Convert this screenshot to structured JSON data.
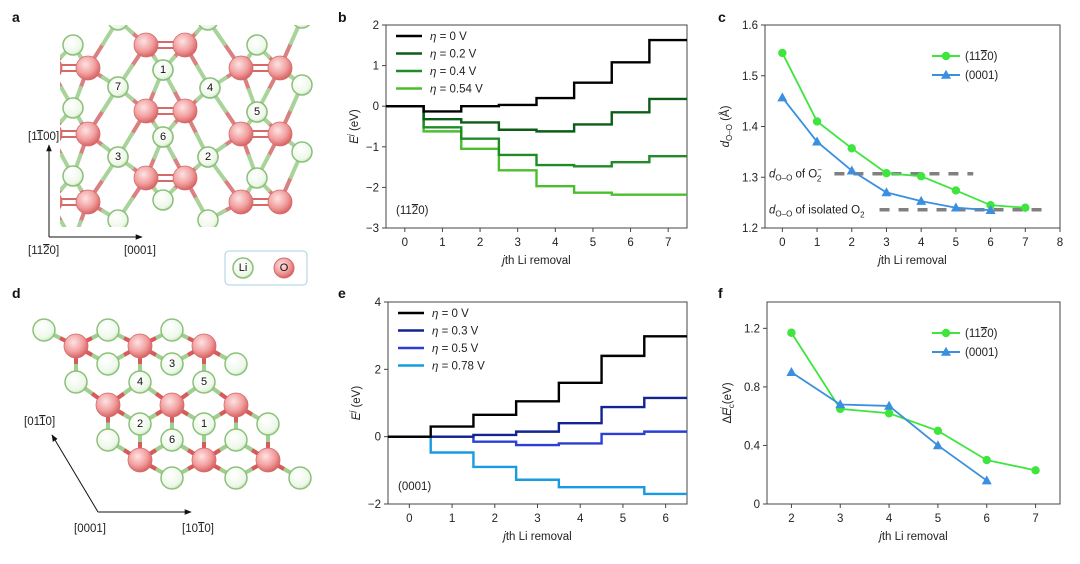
{
  "panel_labels": [
    "a",
    "b",
    "c",
    "d",
    "e",
    "f"
  ],
  "structure_a": {
    "axis_up": "[1̅100]",
    "axis_up_text": "[1100]",
    "axis_origin": "[1120]",
    "axis_right": "[0001]",
    "site_numbers": [
      "1",
      "2",
      "3",
      "4",
      "5",
      "6",
      "7"
    ],
    "legend": {
      "li": "Li",
      "o": "O"
    },
    "colors": {
      "li_fill": "#e6f5df",
      "li_stroke": "#8cc07a",
      "o_fill": "#f2a3a3",
      "o_stroke": "#d46a6a"
    }
  },
  "structure_d": {
    "axis_up": "[0110]",
    "axis_origin": "[0001]",
    "axis_right": "[1010]",
    "site_numbers": [
      "1",
      "2",
      "3",
      "4",
      "5",
      "6"
    ]
  },
  "chart_data": [
    {
      "panel": "b",
      "type": "line",
      "style": "step",
      "title": "",
      "annotation": "(1120)",
      "xlabel": "jth Li removal",
      "ylabel": "E^j (eV)",
      "xlim": [
        -0.5,
        7.5
      ],
      "ylim": [
        -3,
        2
      ],
      "xticks": [
        "0",
        "1",
        "2",
        "3",
        "4",
        "5",
        "6",
        "7"
      ],
      "yticks": [
        "2",
        "1",
        "0",
        "−1",
        "−2",
        "−3"
      ],
      "legend_position": "top-left",
      "x": [
        0,
        1,
        2,
        3,
        4,
        5,
        6,
        7
      ],
      "series": [
        {
          "name": "η = 0 V",
          "color": "#000000",
          "values": [
            0,
            -0.13,
            0.0,
            0.03,
            0.2,
            0.58,
            1.08,
            1.63
          ]
        },
        {
          "name": "η = 0.2 V",
          "color": "#0b5d17",
          "values": [
            0,
            -0.32,
            -0.4,
            -0.58,
            -0.62,
            -0.45,
            -0.15,
            0.18
          ]
        },
        {
          "name": "η = 0.4 V",
          "color": "#1f8a26",
          "values": [
            0,
            -0.52,
            -0.8,
            -1.2,
            -1.45,
            -1.48,
            -1.38,
            -1.23
          ]
        },
        {
          "name": "η = 0.54 V",
          "color": "#4cbe2e",
          "values": [
            0,
            -0.62,
            -1.05,
            -1.58,
            -1.97,
            -2.13,
            -2.18,
            -2.18
          ]
        }
      ]
    },
    {
      "panel": "c",
      "type": "line",
      "title": "",
      "xlabel": "jth Li removal",
      "ylabel": "d O–O (Å)",
      "xlim": [
        -0.5,
        8
      ],
      "ylim": [
        1.2,
        1.6
      ],
      "xticks": [
        "0",
        "1",
        "2",
        "3",
        "4",
        "5",
        "6",
        "7",
        "8"
      ],
      "yticks": [
        "1.6",
        "1.5",
        "1.4",
        "1.3",
        "1.2"
      ],
      "legend_position": "top-right",
      "series": [
        {
          "name": "(1120)",
          "color": "#3de53d",
          "marker": "circle",
          "x": [
            0,
            1,
            2,
            3,
            4,
            5,
            6,
            7
          ],
          "values": [
            1.545,
            1.41,
            1.357,
            1.308,
            1.302,
            1.274,
            1.245,
            1.24
          ]
        },
        {
          "name": "(0001)",
          "color": "#3a8fe0",
          "marker": "triangle",
          "x": [
            0,
            1,
            2,
            3,
            4,
            5,
            6
          ],
          "values": [
            1.457,
            1.37,
            1.313,
            1.27,
            1.253,
            1.24,
            1.235
          ]
        }
      ],
      "reference_lines": [
        {
          "label_prefix": "d",
          "label_sub": "O–O",
          "label_suffix": " of O",
          "label_sup": "−",
          "label_sub2": "2",
          "value": 1.307,
          "color": "#808080"
        },
        {
          "label_prefix": "d",
          "label_sub": "O–O",
          "label_suffix": " of isolated O",
          "label_sup": "",
          "label_sub2": "2",
          "value": 1.236,
          "color": "#808080"
        }
      ]
    },
    {
      "panel": "e",
      "type": "line",
      "style": "step",
      "title": "",
      "annotation": "(0001)",
      "xlabel": "jth Li removal",
      "ylabel": "E^j (eV)",
      "xlim": [
        -0.5,
        6.5
      ],
      "ylim": [
        -2,
        4
      ],
      "xticks": [
        "0",
        "1",
        "2",
        "3",
        "4",
        "5",
        "6"
      ],
      "yticks": [
        "4",
        "2",
        "0",
        "−2"
      ],
      "legend_position": "top-left",
      "x": [
        0,
        1,
        2,
        3,
        4,
        5,
        6
      ],
      "series": [
        {
          "name": "η = 0 V",
          "color": "#000000",
          "values": [
            0,
            0.3,
            0.65,
            1.05,
            1.6,
            2.4,
            2.98
          ]
        },
        {
          "name": "η = 0.3 V",
          "color": "#13238f",
          "values": [
            0,
            0.0,
            0.05,
            0.15,
            0.4,
            0.88,
            1.15
          ]
        },
        {
          "name": "η = 0.5 V",
          "color": "#2b3fd6",
          "values": [
            0,
            0.0,
            -0.15,
            -0.25,
            -0.2,
            0.08,
            0.15
          ]
        },
        {
          "name": "η = 0.78 V",
          "color": "#1a9be0",
          "values": [
            0,
            -0.47,
            -0.9,
            -1.28,
            -1.5,
            -1.5,
            -1.7
          ]
        }
      ]
    },
    {
      "panel": "f",
      "type": "line",
      "title": "",
      "xlabel": "jth Li removal",
      "ylabel": "ΔE_c^j (eV)",
      "xlim": [
        1.5,
        7.5
      ],
      "ylim": [
        0,
        1.38
      ],
      "xticks": [
        "2",
        "3",
        "4",
        "5",
        "6",
        "7"
      ],
      "yticks": [
        "1.2",
        "0.8",
        "0.4",
        "0"
      ],
      "legend_position": "top-right",
      "series": [
        {
          "name": "(1120)",
          "color": "#3de53d",
          "marker": "circle",
          "x": [
            2,
            3,
            4,
            5,
            6,
            7
          ],
          "values": [
            1.17,
            0.65,
            0.62,
            0.5,
            0.3,
            0.23
          ]
        },
        {
          "name": "(0001)",
          "color": "#3a8fe0",
          "marker": "triangle",
          "x": [
            2,
            3,
            4,
            5,
            6
          ],
          "values": [
            0.9,
            0.68,
            0.67,
            0.4,
            0.16
          ]
        }
      ]
    }
  ]
}
